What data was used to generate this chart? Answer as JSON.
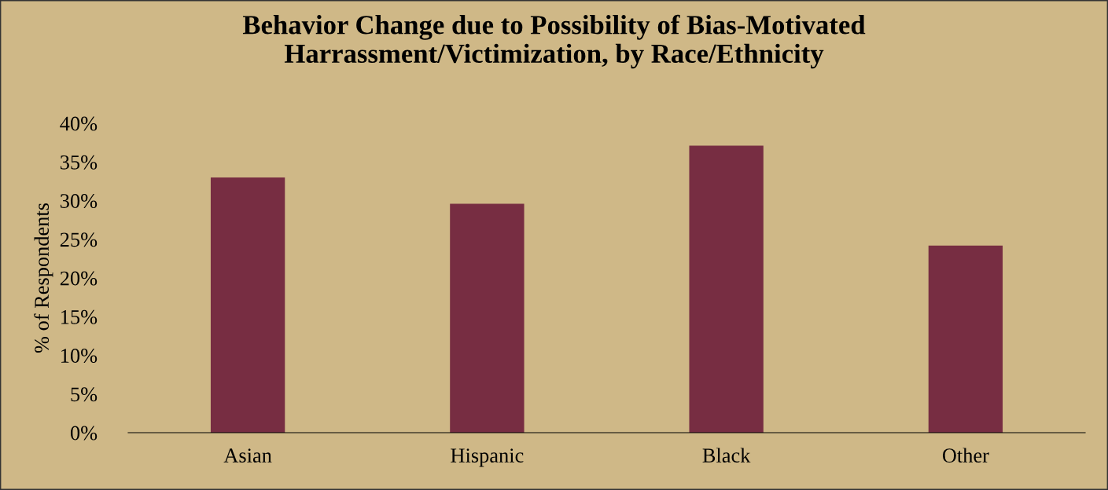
{
  "chart_data": {
    "type": "bar",
    "title": "Behavior Change due to Possibility of Bias-Motivated\nHarrassment/Victimization, by Race/Ethnicity",
    "ylabel": "% of Respondents",
    "categories": [
      "Asian",
      "Hispanic",
      "Black",
      "Other"
    ],
    "values": [
      33.0,
      29.6,
      37.1,
      24.2
    ],
    "color": "#772d42",
    "ylim": [
      0,
      40
    ],
    "yticks": [
      {
        "value": 0,
        "label": "0%"
      },
      {
        "value": 5,
        "label": "5%"
      },
      {
        "value": 10,
        "label": "10%"
      },
      {
        "value": 15,
        "label": "15%"
      },
      {
        "value": 20,
        "label": "20%"
      },
      {
        "value": 25,
        "label": "25%"
      },
      {
        "value": 30,
        "label": "30%"
      },
      {
        "value": 35,
        "label": "35%"
      },
      {
        "value": 40,
        "label": "40%"
      }
    ],
    "grid": false,
    "legend": false
  }
}
